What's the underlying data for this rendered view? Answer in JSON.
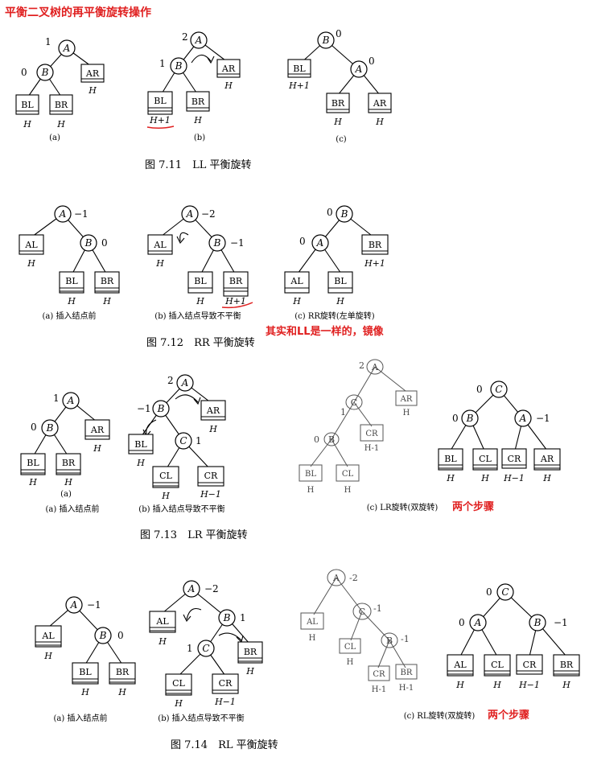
{
  "header": {
    "title": "平衡二叉树的再平衡旋转操作",
    "note_rr": "其实和LL是一样的，镜像",
    "note_steps_lr": "两个步骤",
    "note_steps_rl": "两个步骤"
  },
  "colors": {
    "annotation": "#e02020",
    "ink": "#000000",
    "pencil": "#555555"
  },
  "figures": [
    {
      "caption": "图 7.11　LL 平衡旋转",
      "subs": [
        "(a)",
        "(b)",
        "(c)"
      ]
    },
    {
      "caption": "图 7.12　RR 平衡旋转",
      "subs": [
        "(a) 插入结点前",
        "(b) 插入结点导致不平衡",
        "(c) RR旋转(左单旋转)"
      ]
    },
    {
      "caption": "图 7.13　LR 平衡旋转",
      "subs": [
        "(a)",
        "(a) 插入结点前",
        "(b) 插入结点导致不平衡",
        "(c) LR旋转(双旋转)"
      ]
    },
    {
      "caption": "图 7.14　RL 平衡旋转",
      "subs": [
        "(a) 插入结点前",
        "(b) 插入结点导致不平衡",
        "(c) RL旋转(双旋转)"
      ]
    }
  ],
  "labels": {
    "A": "A",
    "B": "B",
    "C": "C",
    "AL": "AL",
    "AR": "AR",
    "BL": "BL",
    "BR": "BR",
    "CL": "CL",
    "CR": "CR",
    "H": "H",
    "H1": "H+1",
    "Hm1": "H−1",
    "Hm1h": "H-1",
    "b0": "0",
    "b1": "1",
    "b2": "2",
    "bm1": "−1",
    "bm2": "−2",
    "bm1h": "-1",
    "bm2h": "-2"
  }
}
